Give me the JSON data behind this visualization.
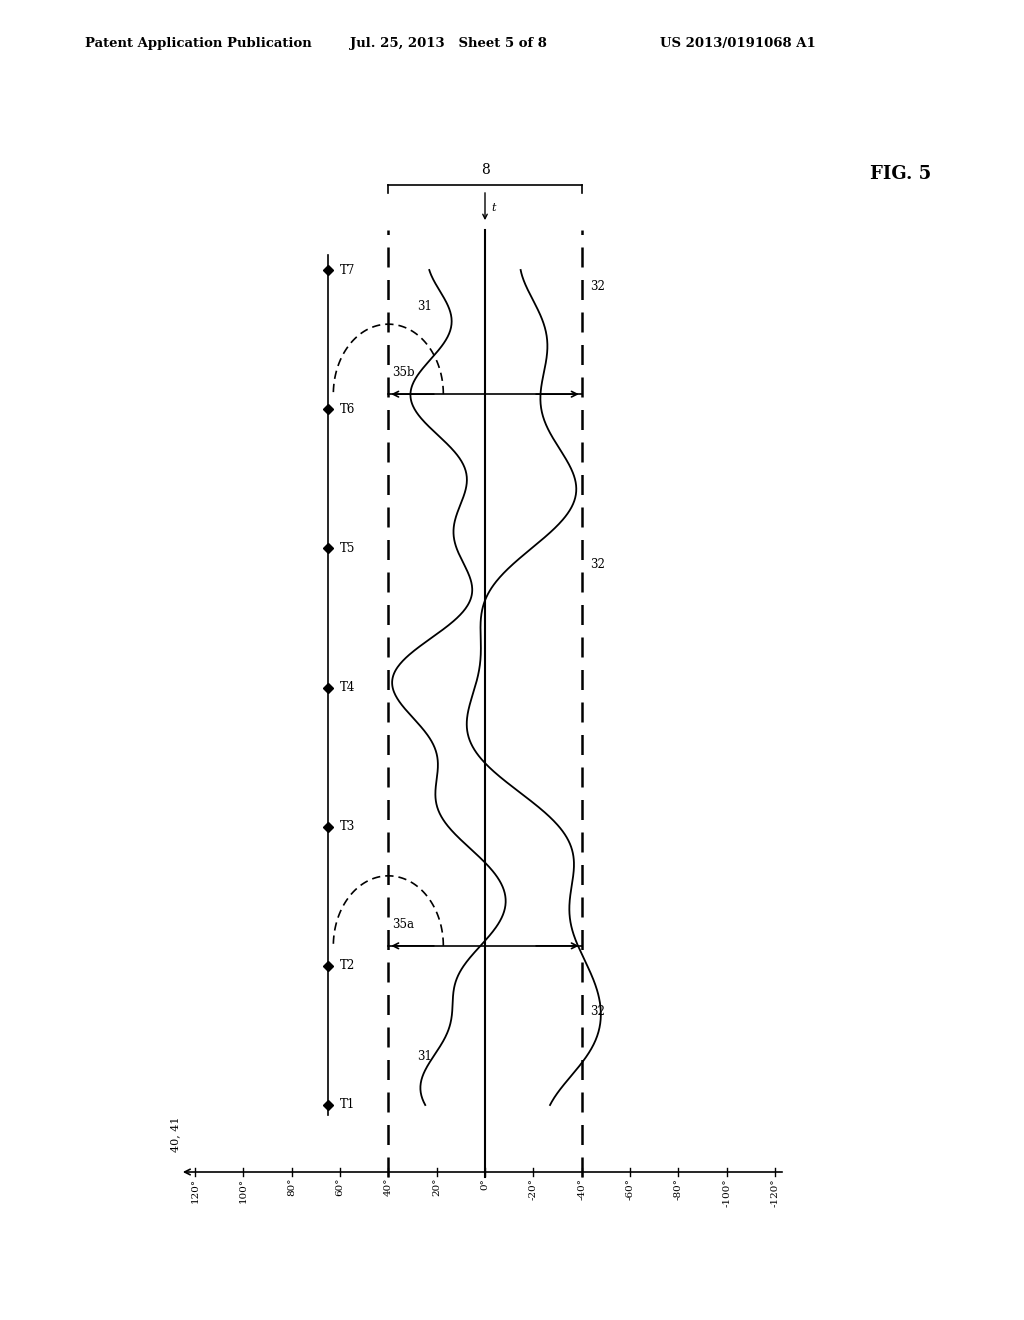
{
  "header_left": "Patent Application Publication",
  "header_mid": "Jul. 25, 2013   Sheet 5 of 8",
  "header_right": "US 2013/0191068 A1",
  "fig_label": "FIG. 5",
  "angle_ticks": [
    120,
    100,
    80,
    60,
    40,
    20,
    0,
    -20,
    -40,
    -60,
    -80,
    -100,
    -120
  ],
  "time_labels": [
    "T1",
    "T2",
    "T3",
    "T4",
    "T5",
    "T6",
    "T7"
  ],
  "axis_label": "40, 41",
  "brace_label": "8",
  "label_t": "t",
  "label_31_upper": "31",
  "label_31_lower": "31",
  "label_32_upper": "32",
  "label_32_mid": "32",
  "label_32_lower": "32",
  "label_35a": "35a",
  "label_35b": "35b",
  "bg_color": "#ffffff"
}
